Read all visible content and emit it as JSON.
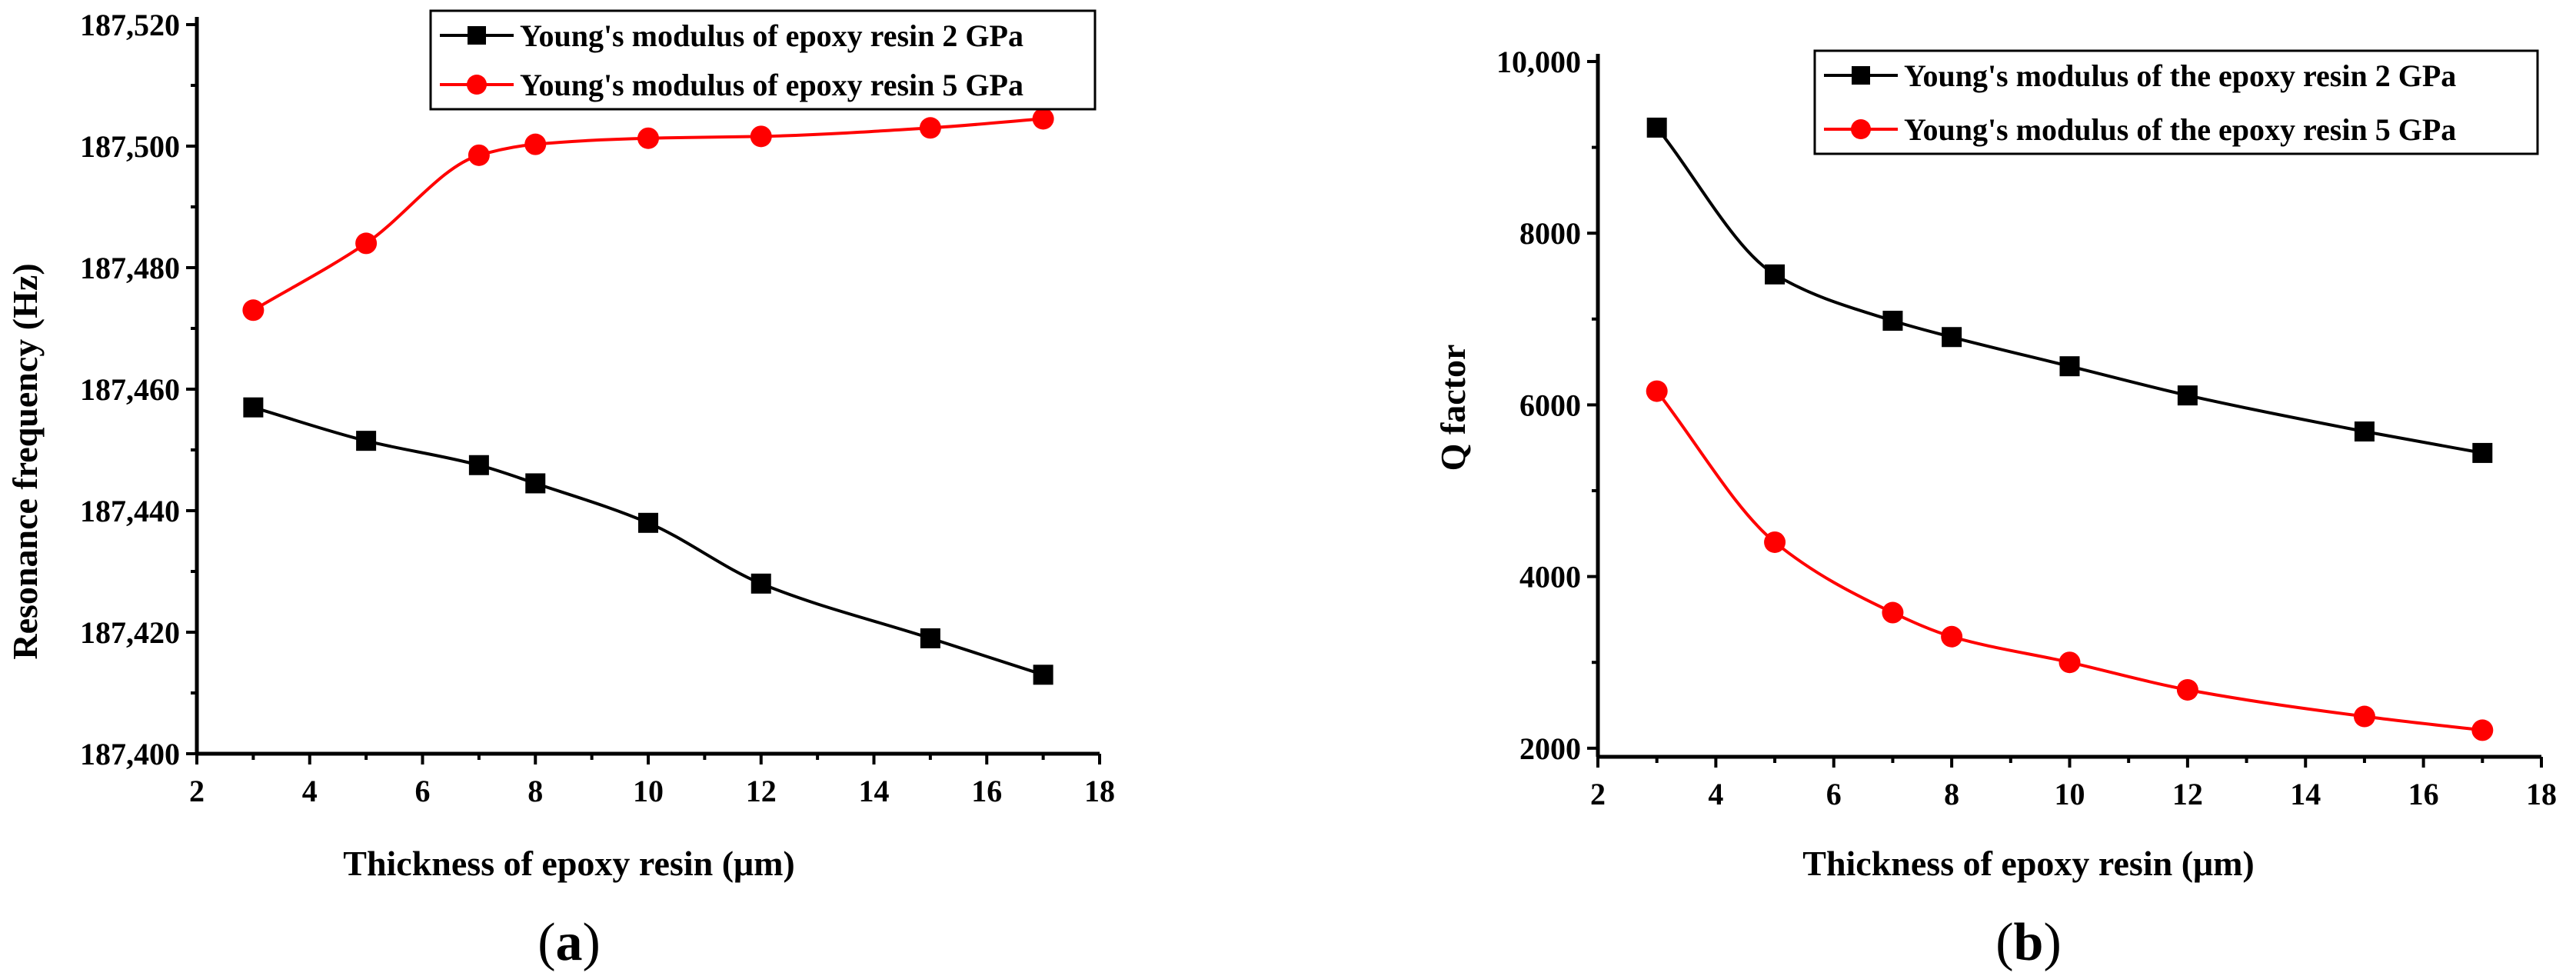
{
  "colors": {
    "series_black": "#000000",
    "series_red": "#ff0000"
  },
  "chart_data": [
    {
      "type": "line",
      "panel_label": "(a)",
      "panel_letter": "a",
      "xlabel": "Thickness of epoxy resin (μm)",
      "ylabel": "Resonance frequency (Hz)",
      "xlim": [
        2,
        18
      ],
      "ylim": [
        187400,
        187520
      ],
      "xticks": [
        2,
        4,
        6,
        8,
        10,
        12,
        14,
        16,
        18
      ],
      "xtick_labels": [
        "2",
        "4",
        "6",
        "8",
        "10",
        "12",
        "14",
        "16",
        "18"
      ],
      "yticks": [
        187400,
        187420,
        187440,
        187460,
        187480,
        187500,
        187520
      ],
      "ytick_labels": [
        "187,400",
        "187,420",
        "187,440",
        "187,460",
        "187,480",
        "187,500",
        "187,520"
      ],
      "legend_position": "top-right",
      "series": [
        {
          "name": "Young's modulus of  epoxy resin 2 GPa",
          "color": "#000000",
          "marker": "square",
          "x": [
            3,
            5,
            7,
            8,
            10,
            12,
            15,
            17
          ],
          "values": [
            187457,
            187451.5,
            187447.5,
            187444.5,
            187438,
            187428,
            187419,
            187413
          ]
        },
        {
          "name": "Young's modulus of  epoxy resin 5 GPa",
          "color": "#ff0000",
          "marker": "circle",
          "x": [
            3,
            5,
            7,
            8,
            10,
            12,
            15,
            17
          ],
          "values": [
            187473,
            187484,
            187498.5,
            187500.3,
            187501.3,
            187501.6,
            187503,
            187504.5
          ]
        }
      ]
    },
    {
      "type": "line",
      "panel_label": "(b)",
      "panel_letter": "b",
      "xlabel": "Thickness of epoxy resin (μm)",
      "ylabel": "Q factor",
      "xlim": [
        2,
        18
      ],
      "ylim": [
        1900,
        10000
      ],
      "xticks": [
        2,
        4,
        6,
        8,
        10,
        12,
        14,
        16,
        18
      ],
      "xtick_labels": [
        "2",
        "4",
        "6",
        "8",
        "10",
        "12",
        "14",
        "16",
        "18"
      ],
      "yticks": [
        2000,
        4000,
        6000,
        8000,
        10000
      ],
      "ytick_labels": [
        "2000",
        "4000",
        "6000",
        "8000",
        "10,000"
      ],
      "legend_position": "top-right",
      "series": [
        {
          "name": "Young's modulus of the epoxy resin 2 GPa",
          "color": "#000000",
          "marker": "square",
          "x": [
            3,
            5,
            7,
            8,
            10,
            12,
            15,
            17
          ],
          "values": [
            9230,
            7520,
            6980,
            6790,
            6450,
            6110,
            5690,
            5440
          ]
        },
        {
          "name": "Young's modulus of the epoxy resin 5 GPa",
          "color": "#ff0000",
          "marker": "circle",
          "x": [
            3,
            5,
            7,
            8,
            10,
            12,
            15,
            17
          ],
          "values": [
            6160,
            4400,
            3580,
            3300,
            3000,
            2680,
            2370,
            2210
          ]
        }
      ]
    }
  ]
}
